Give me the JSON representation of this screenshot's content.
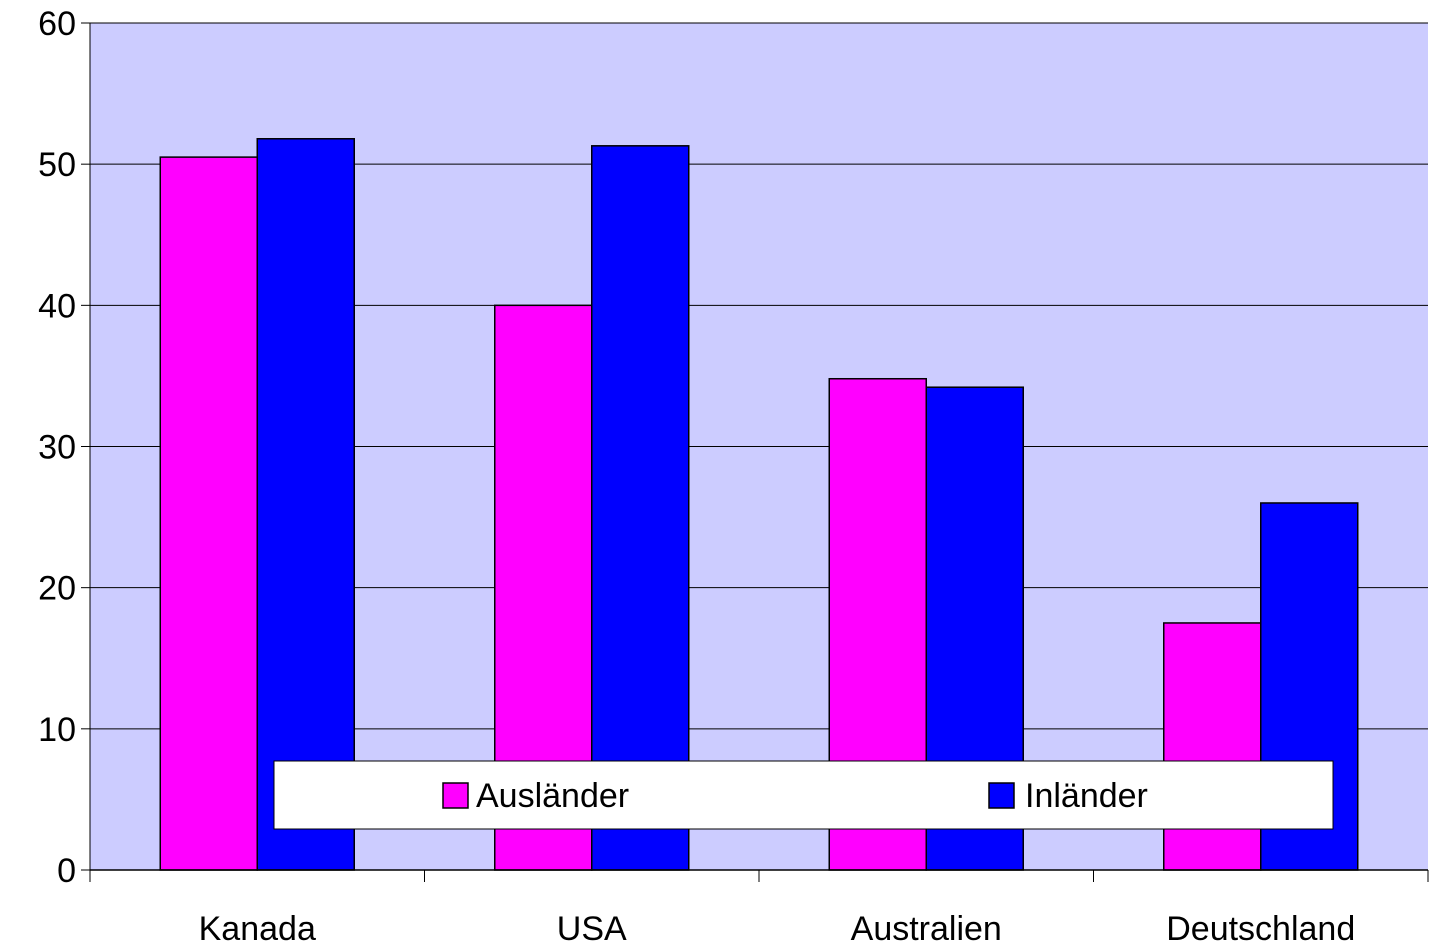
{
  "chart_data": {
    "type": "bar",
    "categories": [
      "Kanada",
      "USA",
      "Australien",
      "Deutschland"
    ],
    "series": [
      {
        "name": "Ausländer",
        "color": "#ff00ff",
        "values": [
          50.5,
          40.0,
          34.8,
          17.5
        ]
      },
      {
        "name": "Inländer",
        "color": "#0000ff",
        "values": [
          51.8,
          51.3,
          34.2,
          26.0
        ]
      }
    ],
    "ylim": [
      0,
      60
    ],
    "yticks": [
      0,
      10,
      20,
      30,
      40,
      50,
      60
    ],
    "grid": true,
    "plot_background": "#ccccff",
    "legend_position": "bottom-inside"
  }
}
